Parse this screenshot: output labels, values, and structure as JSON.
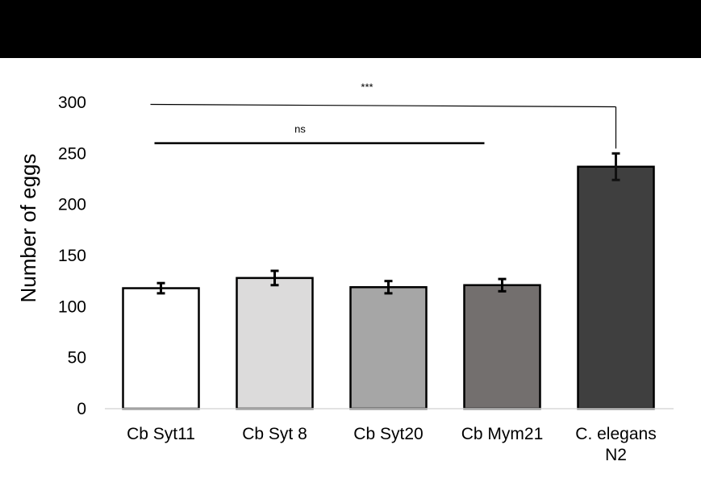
{
  "chart_data": {
    "type": "bar",
    "title": "",
    "xlabel": "",
    "ylabel": "Number of eggs",
    "ylim": [
      0,
      300
    ],
    "yticks": [
      0,
      50,
      100,
      150,
      200,
      250,
      300
    ],
    "grid": false,
    "categories": [
      [
        "Cb Syt11"
      ],
      [
        "Cb Syt 8"
      ],
      [
        "Cb Syt20"
      ],
      [
        "Cb Mym21"
      ],
      [
        "C. elegans",
        "N2"
      ]
    ],
    "values": [
      118,
      128,
      119,
      121,
      237
    ],
    "errors": [
      5,
      7,
      6,
      6,
      13
    ],
    "colors": [
      "#ffffff",
      "#dcdbdb",
      "#a6a6a6",
      "#736f6e",
      "#3f3f3f"
    ],
    "annotations": [
      {
        "label": "***",
        "from": 0,
        "to": 4,
        "y": 298
      },
      {
        "label": "ns",
        "from": 0,
        "to": 3,
        "y": 260
      }
    ]
  }
}
